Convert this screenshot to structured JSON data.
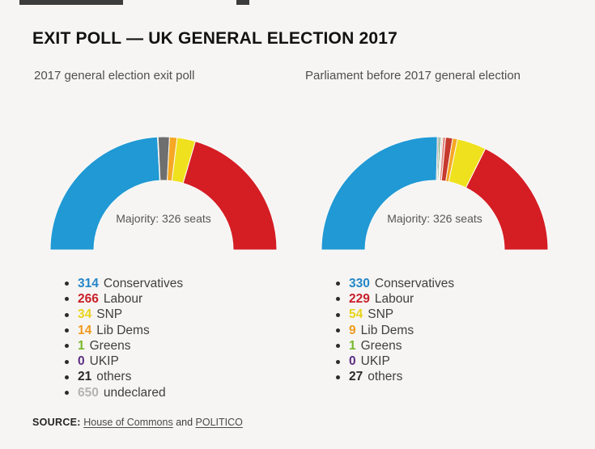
{
  "header": {
    "title": "EXIT POLL — UK GENERAL ELECTION 2017"
  },
  "source": {
    "prefix": "SOURCE:",
    "link1": "House of Commons",
    "conjunction": "and",
    "link2": "POLITICO"
  },
  "colors": {
    "conservative_blue": "#2099d4",
    "labour_red": "#d51d24",
    "snp_yellow": "#efe11e",
    "libdem_orange": "#f6a723",
    "green": "#76b82a",
    "ukip_purple": "#5c2d83",
    "others_gray": "#6f6f6f",
    "undeclared_gray": "#b3b3b3",
    "background": "#f6f5f3"
  },
  "chart_data": [
    {
      "type": "half-donut",
      "title": "2017 general election exit poll",
      "center_label": "Majority: 326 seats",
      "total_seats": 650,
      "majority_seats": 326,
      "segments": [
        {
          "label": "Conservatives",
          "value": 314,
          "color": "#2099d4"
        },
        {
          "label": "Greens",
          "value": 1,
          "color": "#7cc5ad"
        },
        {
          "label": "others",
          "value": 21,
          "color": "#6f6f6f"
        },
        {
          "label": "Lib Dems",
          "value": 14,
          "color": "#f6a723"
        },
        {
          "label": "SNP",
          "value": 34,
          "color": "#efe11e"
        },
        {
          "label": "Labour",
          "value": 266,
          "color": "#d51d24"
        }
      ],
      "legend": [
        {
          "value": "314",
          "label": "Conservatives",
          "color": "#2586c7"
        },
        {
          "value": "266",
          "label": "Labour",
          "color": "#c9202a"
        },
        {
          "value": "34",
          "label": "SNP",
          "color": "#e8d41c"
        },
        {
          "value": "14",
          "label": "Lib Dems",
          "color": "#f09a1f"
        },
        {
          "value": "1",
          "label": "Greens",
          "color": "#76b82a"
        },
        {
          "value": "0",
          "label": "UKIP",
          "color": "#5c2d83"
        },
        {
          "value": "21",
          "label": "others",
          "color": "#2b2b2b"
        },
        {
          "value": "650",
          "label": "undeclared",
          "color": "#b3b3b3"
        }
      ]
    },
    {
      "type": "half-donut",
      "title": "Parliament before 2017 general election",
      "center_label": "Majority: 326 seats",
      "total_seats": 650,
      "majority_seats": 326,
      "segments": [
        {
          "label": "Conservatives",
          "value": 330,
          "color": "#2099d4"
        },
        {
          "label": "others",
          "value": 3,
          "color": "#9b93a0"
        },
        {
          "label": "others",
          "value": 3,
          "color": "#317d35"
        },
        {
          "label": "Greens",
          "value": 1,
          "color": "#76b82a"
        },
        {
          "label": "others",
          "value": 3,
          "color": "#d5d2c9"
        },
        {
          "label": "others",
          "value": 5,
          "color": "#e2837b"
        },
        {
          "label": "others",
          "value": 13,
          "color": "#c63a2e"
        },
        {
          "label": "Lib Dems",
          "value": 9,
          "color": "#f6a723"
        },
        {
          "label": "SNP",
          "value": 54,
          "color": "#efe11e"
        },
        {
          "label": "Labour",
          "value": 229,
          "color": "#d51d24"
        }
      ],
      "legend": [
        {
          "value": "330",
          "label": "Conservatives",
          "color": "#2586c7"
        },
        {
          "value": "229",
          "label": "Labour",
          "color": "#c9202a"
        },
        {
          "value": "54",
          "label": "SNP",
          "color": "#e8d41c"
        },
        {
          "value": "9",
          "label": "Lib Dems",
          "color": "#f09a1f"
        },
        {
          "value": "1",
          "label": "Greens",
          "color": "#76b82a"
        },
        {
          "value": "0",
          "label": "UKIP",
          "color": "#5c2d83"
        },
        {
          "value": "27",
          "label": "others",
          "color": "#2b2b2b"
        }
      ]
    }
  ]
}
